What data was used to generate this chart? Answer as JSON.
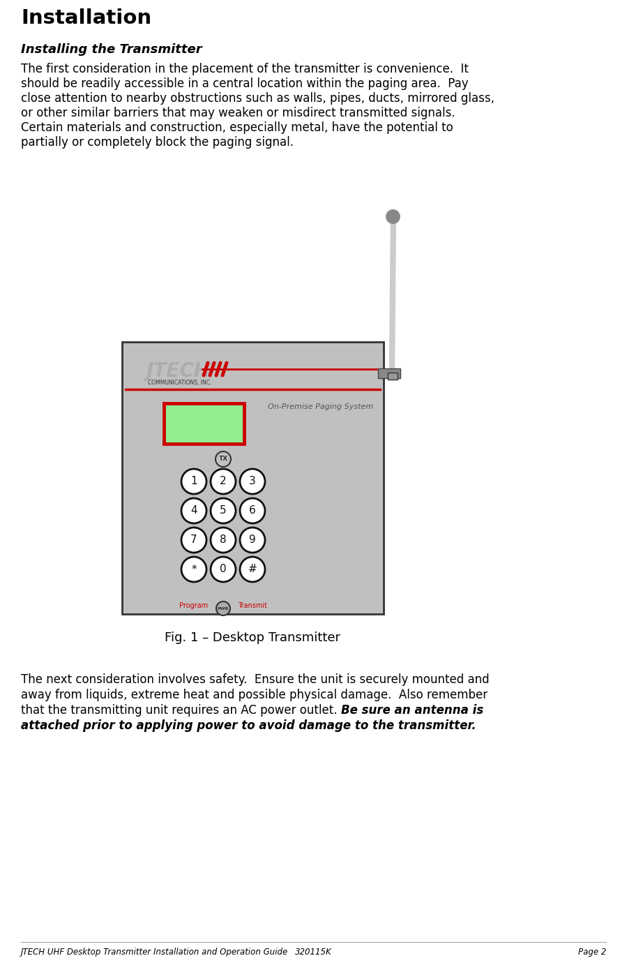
{
  "title": "Installation",
  "subtitle": "Installing the Transmitter",
  "body1_lines": [
    "The first consideration in the placement of the transmitter is convenience.  It",
    "should be readily accessible in a central location within the paging area.  Pay",
    "close attention to nearby obstructions such as walls, pipes, ducts, mirrored glass,",
    "or other similar barriers that may weaken or misdirect transmitted signals.",
    "Certain materials and construction, especially metal, have the potential to",
    "partially or completely block the paging signal."
  ],
  "fig_caption": "Fig. 1 – Desktop Transmitter",
  "body2_parts": [
    [
      [
        "The next consideration involves safety.  Ensure the unit is securely mounted and",
        false
      ]
    ],
    [
      [
        "away from liquids, extreme heat and possible physical damage.  Also remember",
        false
      ]
    ],
    [
      [
        "that the transmitting unit requires an AC power outlet. ",
        false
      ],
      [
        "Be sure an antenna is",
        true
      ]
    ],
    [
      [
        "attached prior to applying power to avoid damage to the transmitter.",
        true
      ]
    ]
  ],
  "footer_left": "JTECH UHF Desktop Transmitter Installation and Operation Guide",
  "footer_center": "320115K",
  "footer_right": "Page 2",
  "bg_color": "#ffffff",
  "text_color": "#000000",
  "device_bg": "#c0c0c0",
  "device_border": "#333333",
  "screen_color": "#90EE90",
  "screen_border": "#cc0000",
  "red_line_color": "#cc0000",
  "keypad_bg": "#ffffff",
  "keypad_border": "#111111",
  "antenna_color": "#cccccc",
  "antenna_tip_color": "#888888",
  "connector_color": "#888888",
  "logo_color": "#aaaaaa",
  "logo_red": "#cc0000",
  "onpremise_color": "#555555",
  "program_transmit_color": "#cc0000",
  "pwr_bg": "#aaaaaa",
  "pwr_text": "#333333"
}
